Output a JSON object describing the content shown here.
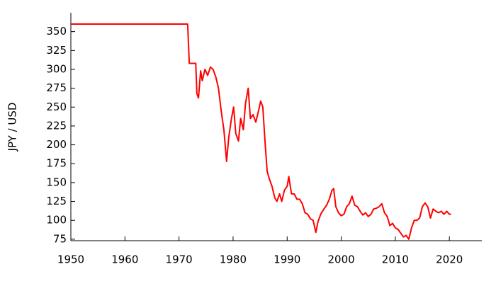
{
  "chart_data": {
    "type": "line",
    "y_label": "JPY / USD",
    "x": [
      1950,
      1971.6,
      1971.9,
      1973.1,
      1973.3,
      1973.6,
      1974.0,
      1974.3,
      1974.8,
      1975.3,
      1975.8,
      1976.3,
      1976.8,
      1977.3,
      1977.8,
      1978.3,
      1978.8,
      1979.2,
      1979.7,
      1980.1,
      1980.5,
      1981.0,
      1981.4,
      1981.9,
      1982.3,
      1982.8,
      1983.2,
      1983.7,
      1984.2,
      1984.7,
      1985.1,
      1985.5,
      1985.9,
      1986.3,
      1986.7,
      1987.2,
      1987.7,
      1988.1,
      1988.6,
      1989.0,
      1989.5,
      1990.0,
      1990.3,
      1990.8,
      1991.3,
      1991.8,
      1992.3,
      1992.8,
      1993.3,
      1993.8,
      1994.3,
      1994.8,
      1995.3,
      1995.7,
      1996.2,
      1996.8,
      1997.3,
      1997.8,
      1998.3,
      1998.6,
      1999.0,
      1999.5,
      2000.0,
      2000.5,
      2001.0,
      2001.5,
      2002.0,
      2002.5,
      2003.0,
      2003.5,
      2004.0,
      2004.5,
      2005.0,
      2005.5,
      2006.0,
      2006.5,
      2007.0,
      2007.5,
      2008.0,
      2008.5,
      2009.0,
      2009.5,
      2010.0,
      2010.5,
      2011.0,
      2011.5,
      2012.0,
      2012.5,
      2013.0,
      2013.5,
      2014.0,
      2014.5,
      2015.0,
      2015.5,
      2016.0,
      2016.5,
      2017.0,
      2017.5,
      2018.0,
      2018.5,
      2019.0,
      2019.5,
      2020.0,
      2020.3
    ],
    "values": [
      360,
      360,
      308,
      308,
      268,
      262,
      298,
      285,
      300,
      292,
      303,
      300,
      290,
      275,
      245,
      220,
      178,
      210,
      235,
      250,
      215,
      205,
      235,
      220,
      255,
      275,
      235,
      240,
      230,
      245,
      258,
      250,
      205,
      165,
      155,
      145,
      130,
      125,
      135,
      125,
      140,
      145,
      158,
      135,
      135,
      128,
      128,
      122,
      110,
      108,
      102,
      100,
      84,
      98,
      108,
      115,
      120,
      128,
      140,
      142,
      118,
      110,
      106,
      108,
      118,
      122,
      132,
      120,
      118,
      112,
      107,
      110,
      105,
      108,
      115,
      116,
      118,
      122,
      110,
      105,
      93,
      96,
      90,
      88,
      83,
      78,
      80,
      75,
      90,
      100,
      100,
      103,
      118,
      123,
      118,
      103,
      115,
      112,
      110,
      112,
      108,
      112,
      108,
      108
    ],
    "color": "#ff0000",
    "xlim": [
      1950,
      2026
    ],
    "ylim": [
      73,
      375
    ],
    "xticks": [
      1950,
      1960,
      1970,
      1980,
      1990,
      2000,
      2010,
      2020
    ],
    "yticks": [
      75,
      100,
      125,
      150,
      175,
      200,
      225,
      250,
      275,
      300,
      325,
      350
    ]
  }
}
